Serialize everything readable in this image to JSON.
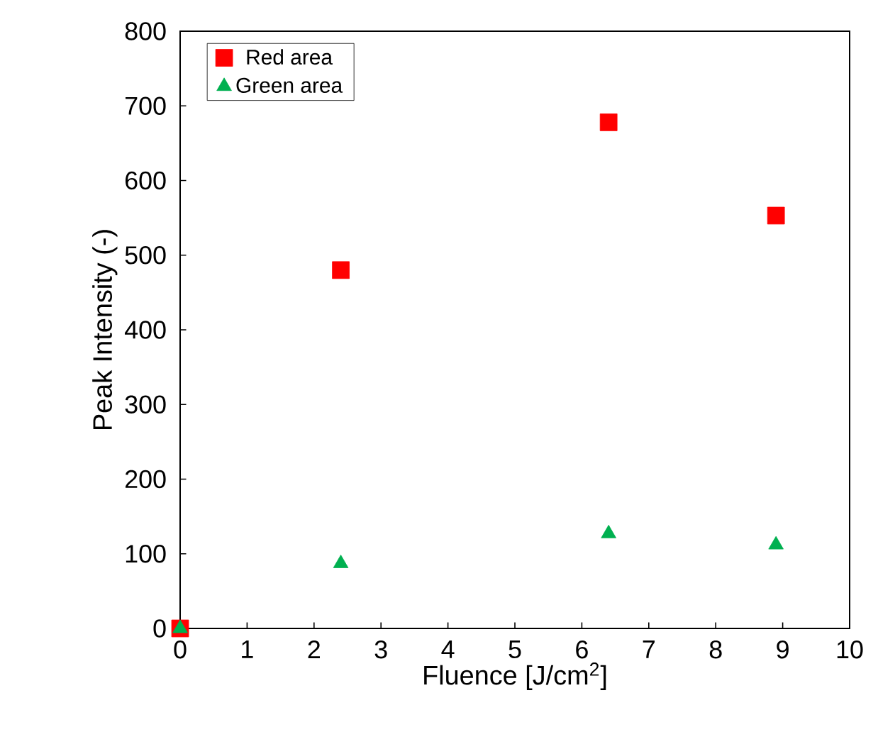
{
  "chart_data": {
    "type": "scatter",
    "xlabel": "Fluence [J/cm$^{2}$]",
    "ylabel": "Peak Intensity (-)",
    "xlim": [
      0,
      10
    ],
    "ylim": [
      0,
      800
    ],
    "xticks": [
      0,
      1,
      2,
      3,
      4,
      5,
      6,
      7,
      8,
      9,
      10
    ],
    "yticks": [
      0,
      100,
      200,
      300,
      400,
      500,
      600,
      700,
      800
    ],
    "grid": false,
    "legend": "top left",
    "series": [
      {
        "name": "Red area",
        "color": "#ff0000",
        "marker": "square",
        "x": [
          0,
          2.4,
          6.4,
          8.9
        ],
        "values": [
          0,
          480,
          678,
          553
        ]
      },
      {
        "name": "Green area",
        "color": "#00b050",
        "marker": "triangle",
        "x": [
          0,
          2.4,
          6.4,
          8.9
        ],
        "values": [
          0,
          87,
          127,
          112
        ]
      }
    ]
  }
}
